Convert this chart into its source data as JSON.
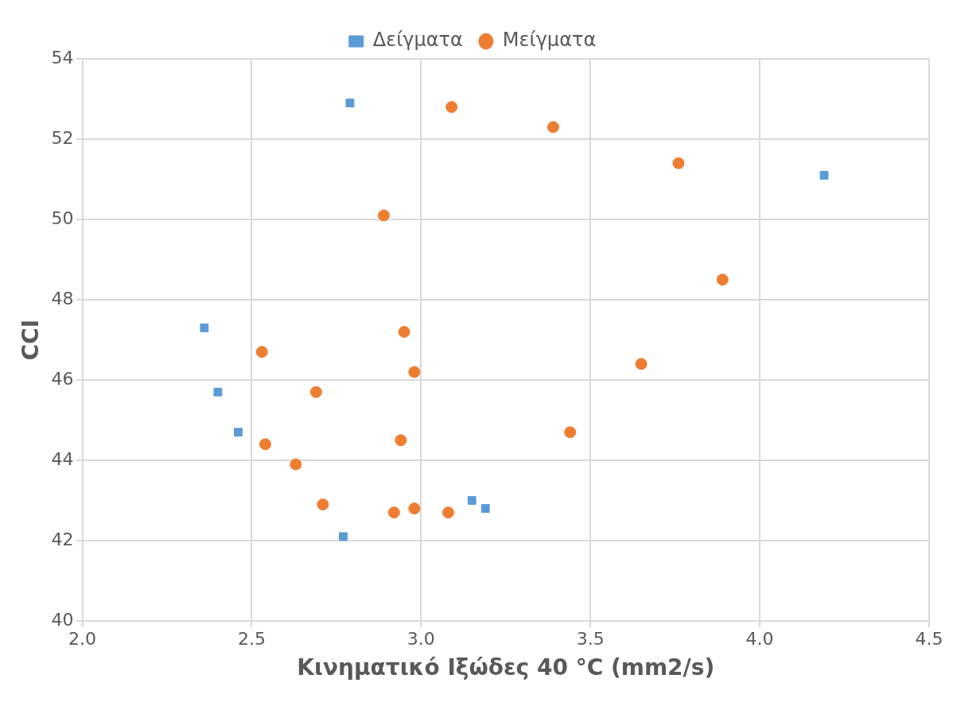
{
  "chart_data": {
    "type": "scatter",
    "xlabel": "Κινηματικό Ιξώδες 40 °C (mm2/s)",
    "ylabel": "CCI",
    "xlim": [
      2.0,
      4.5
    ],
    "xticks": [
      {
        "value": 2.0,
        "label": "2.0"
      },
      {
        "value": 2.5,
        "label": "2.5"
      },
      {
        "value": 3.0,
        "label": "3.0"
      },
      {
        "value": 3.5,
        "label": "3.5"
      },
      {
        "value": 4.0,
        "label": "4.0"
      },
      {
        "value": 4.5,
        "label": "4.5"
      }
    ],
    "ylim": [
      40,
      54
    ],
    "yticks": [
      40,
      42,
      44,
      46,
      48,
      50,
      52,
      54
    ],
    "grid": true,
    "legend": "top",
    "series": [
      {
        "name": "Δείγματα",
        "color": "#5b9bd5",
        "marker": "square",
        "x": [
          2.79,
          4.19,
          2.36,
          2.4,
          2.46,
          2.77,
          3.15,
          3.19
        ],
        "values": [
          52.9,
          51.1,
          47.3,
          45.7,
          44.7,
          42.1,
          43.0,
          42.8
        ]
      },
      {
        "name": "Μείγματα",
        "color": "#ed7d31",
        "marker": "circle",
        "x": [
          3.09,
          3.39,
          3.76,
          2.89,
          3.89,
          2.95,
          2.53,
          2.98,
          3.65,
          2.69,
          3.44,
          2.94,
          2.54,
          2.63,
          2.71,
          2.92,
          2.98,
          3.08
        ],
        "values": [
          52.8,
          52.3,
          51.4,
          50.1,
          48.5,
          47.2,
          46.7,
          46.2,
          46.4,
          45.7,
          44.7,
          44.5,
          44.4,
          43.9,
          42.9,
          42.7,
          42.8,
          42.7
        ]
      }
    ]
  }
}
